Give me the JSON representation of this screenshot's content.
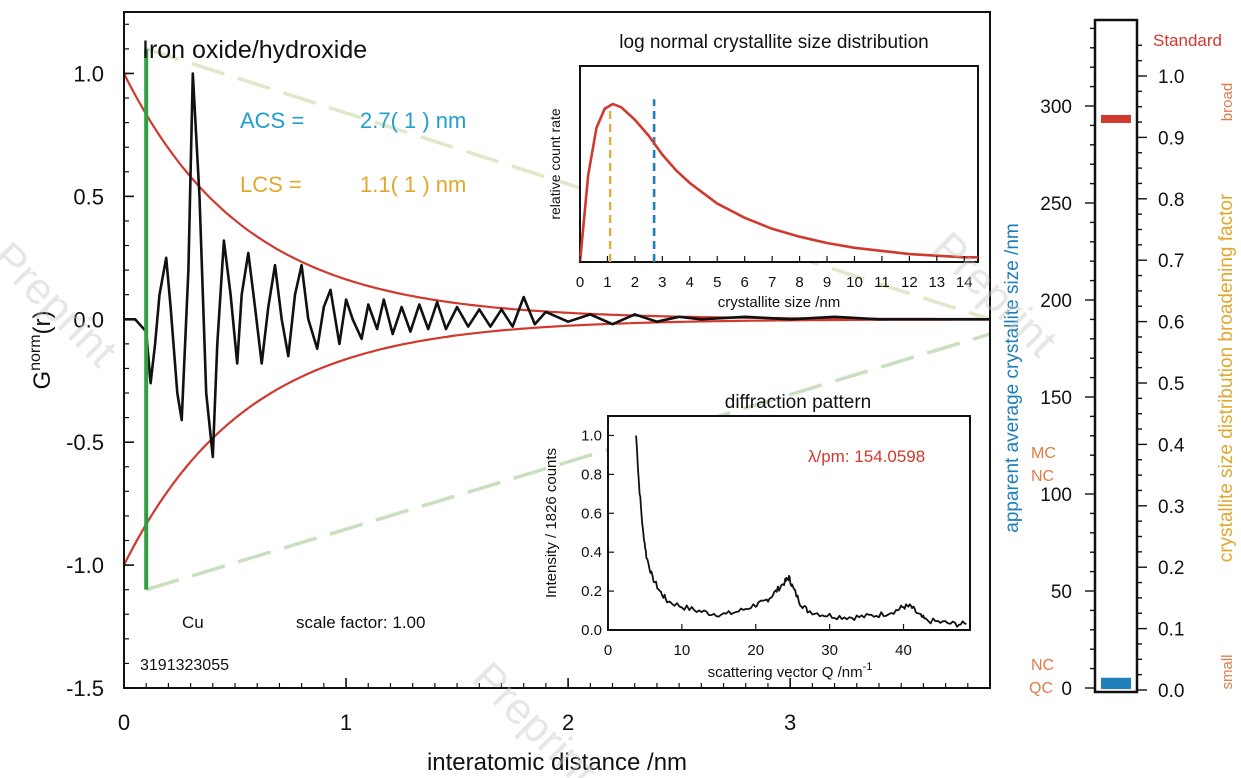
{
  "watermark": "Preprint",
  "chart_data": [
    {
      "type": "line",
      "title": "Iron oxide/hydroxide",
      "xlabel": "interatomic distance /nm",
      "ylabel_main": "G",
      "ylabel_sup": "norm",
      "ylabel_tail": "(r)",
      "xlim": [
        0,
        3.9
      ],
      "ylim": [
        -1.5,
        1.25
      ],
      "xticks": [
        "0",
        "1",
        "2",
        "3"
      ],
      "xtick_values": [
        0,
        1,
        2,
        3
      ],
      "yticks": [
        "1.0",
        "0.5",
        "0.0",
        "-0.5",
        "-1.0",
        "-1.5"
      ],
      "ytick_values": [
        1.0,
        0.5,
        0.0,
        -0.5,
        -1.0,
        -1.5
      ],
      "acs_label": "ACS =",
      "acs_value": "2.7( 1 ) nm",
      "lcs_label": "LCS =",
      "lcs_value": "1.1( 1 ) nm",
      "element_label": "Cu",
      "scale_factor": "scale factor: 1.00",
      "sample_id": "3191323055",
      "cutoff_r": 0.1,
      "colors": {
        "envelope": "#d0392e",
        "signal": "#111111",
        "cutoff": "#2ea043",
        "dash_upper": "#dfe8c8",
        "dash_lower": "#c8e0c0",
        "acs": "#1f9ed1",
        "lcs": "#e0a82e"
      },
      "envelope": {
        "type": "exponential",
        "amplitude": 1.0,
        "decay_nm": 0.55
      },
      "series": [
        {
          "role": "pdf-signal",
          "x": [
            0,
            0.05,
            0.1,
            0.12,
            0.14,
            0.16,
            0.19,
            0.21,
            0.24,
            0.26,
            0.29,
            0.31,
            0.34,
            0.37,
            0.4,
            0.42,
            0.45,
            0.48,
            0.51,
            0.53,
            0.56,
            0.59,
            0.62,
            0.65,
            0.68,
            0.71,
            0.74,
            0.77,
            0.8,
            0.83,
            0.87,
            0.9,
            0.93,
            0.97,
            1.0,
            1.03,
            1.07,
            1.1,
            1.14,
            1.17,
            1.21,
            1.25,
            1.29,
            1.33,
            1.37,
            1.41,
            1.45,
            1.5,
            1.55,
            1.6,
            1.65,
            1.7,
            1.75,
            1.8,
            1.85,
            1.9,
            2.0,
            2.1,
            2.2,
            2.3,
            2.4,
            2.5,
            2.6,
            2.8,
            3.0,
            3.2,
            3.4,
            3.6,
            3.9
          ],
          "y": [
            0.0,
            0.0,
            -0.05,
            -0.26,
            -0.1,
            0.1,
            0.25,
            0.05,
            -0.3,
            -0.41,
            0.2,
            1.0,
            0.5,
            -0.3,
            -0.56,
            -0.1,
            0.32,
            0.1,
            -0.18,
            0.1,
            0.27,
            0.05,
            -0.18,
            0.05,
            0.22,
            0.0,
            -0.15,
            0.1,
            0.22,
            0.0,
            -0.12,
            0.05,
            0.12,
            -0.1,
            0.08,
            0.0,
            -0.08,
            0.06,
            -0.04,
            0.08,
            -0.06,
            0.05,
            -0.05,
            0.06,
            -0.04,
            0.07,
            -0.04,
            0.05,
            -0.03,
            0.04,
            -0.03,
            0.04,
            -0.03,
            0.09,
            -0.02,
            0.03,
            -0.01,
            0.02,
            -0.02,
            0.02,
            -0.01,
            0.01,
            0.0,
            0.01,
            0.0,
            0.01,
            0.0,
            0.0,
            0.0
          ]
        },
        {
          "role": "dash-upper",
          "x": [
            0.1,
            3.9
          ],
          "y": [
            1.1,
            0.0
          ]
        },
        {
          "role": "dash-lower",
          "x": [
            0.1,
            3.9
          ],
          "y": [
            -1.1,
            -0.06
          ]
        }
      ]
    },
    {
      "type": "line",
      "title": "log normal crystallite size distribution",
      "xlabel": "crystallite size /nm",
      "ylabel": "relative count rate",
      "xlim": [
        0,
        14.5
      ],
      "xticks": [
        "0",
        "1",
        "2",
        "3",
        "4",
        "5",
        "6",
        "7",
        "8",
        "9",
        "10",
        "11",
        "12",
        "13",
        "14"
      ],
      "lcs_marker": 1.1,
      "acs_marker": 2.7,
      "series": [
        {
          "role": "distribution",
          "x": [
            0,
            0.3,
            0.6,
            0.9,
            1.2,
            1.5,
            2.0,
            2.5,
            3.0,
            3.5,
            4,
            5,
            6,
            7,
            8,
            9,
            10,
            11,
            12,
            13,
            14,
            14.5
          ],
          "y": [
            0.0,
            0.55,
            0.85,
            0.97,
            1.0,
            0.98,
            0.9,
            0.8,
            0.68,
            0.58,
            0.5,
            0.37,
            0.28,
            0.21,
            0.16,
            0.12,
            0.09,
            0.07,
            0.05,
            0.04,
            0.03,
            0.03
          ]
        }
      ]
    },
    {
      "type": "line",
      "title": "diffraction pattern",
      "xlabel_main": "scattering vector Q /nm",
      "xlabel_sup": "-1",
      "ylabel": "Intensity /  1826 counts",
      "wavelength_label": "λ/pm:   154.0598",
      "xlim": [
        0,
        49
      ],
      "ylim": [
        0,
        1.1
      ],
      "xticks": [
        "0",
        "10",
        "20",
        "30",
        "40"
      ],
      "xtick_values": [
        0,
        10,
        20,
        30,
        40
      ],
      "yticks": [
        "0.0",
        "0.2",
        "0.4",
        "0.6",
        "0.8",
        "1.0"
      ],
      "ytick_values": [
        0,
        0.2,
        0.4,
        0.6,
        0.8,
        1.0
      ],
      "series": [
        {
          "role": "intensity",
          "x": [
            3.8,
            4.2,
            4.7,
            5.2,
            6,
            7,
            8,
            10,
            12,
            14,
            16,
            18,
            20,
            21,
            22,
            23,
            24,
            24.5,
            25,
            26,
            27,
            29,
            31,
            33,
            35,
            37,
            39,
            40,
            41,
            42,
            43,
            45,
            47,
            48.5
          ],
          "y": [
            1.0,
            0.75,
            0.52,
            0.38,
            0.27,
            0.2,
            0.15,
            0.12,
            0.1,
            0.085,
            0.08,
            0.1,
            0.13,
            0.14,
            0.17,
            0.21,
            0.25,
            0.27,
            0.22,
            0.14,
            0.1,
            0.08,
            0.07,
            0.065,
            0.07,
            0.08,
            0.1,
            0.12,
            0.12,
            0.08,
            0.05,
            0.04,
            0.03,
            0.03
          ]
        }
      ]
    },
    {
      "type": "bar",
      "left_axis_label": "apparent average crystallite size /nm",
      "right_axis_label": "crystallite size distribution broadening factor",
      "left_ylim": [
        0,
        350
      ],
      "left_ticks": [
        "300",
        "250",
        "200",
        "150",
        "100",
        "50",
        "0"
      ],
      "left_tick_values": [
        300,
        250,
        200,
        150,
        100,
        50,
        0
      ],
      "right_ylim": [
        0,
        1.07
      ],
      "right_ticks": [
        "1.0",
        "0.9",
        "0.8",
        "0.7",
        "0.6",
        "0.5",
        "0.4",
        "0.3",
        "0.2",
        "0.1",
        "0.0"
      ],
      "right_tick_values": [
        1.0,
        0.9,
        0.8,
        0.7,
        0.6,
        0.5,
        0.4,
        0.3,
        0.2,
        0.1,
        0.0
      ],
      "standard_label": "Standard",
      "broad_label": "broad",
      "small_label": "small",
      "mc_label": "MC",
      "nc_label_upper": "NC",
      "nc_label_lower": "NC",
      "qc_label": "QC",
      "acs_bar_value": 2.7,
      "broadening_marker": 0.93
    }
  ]
}
